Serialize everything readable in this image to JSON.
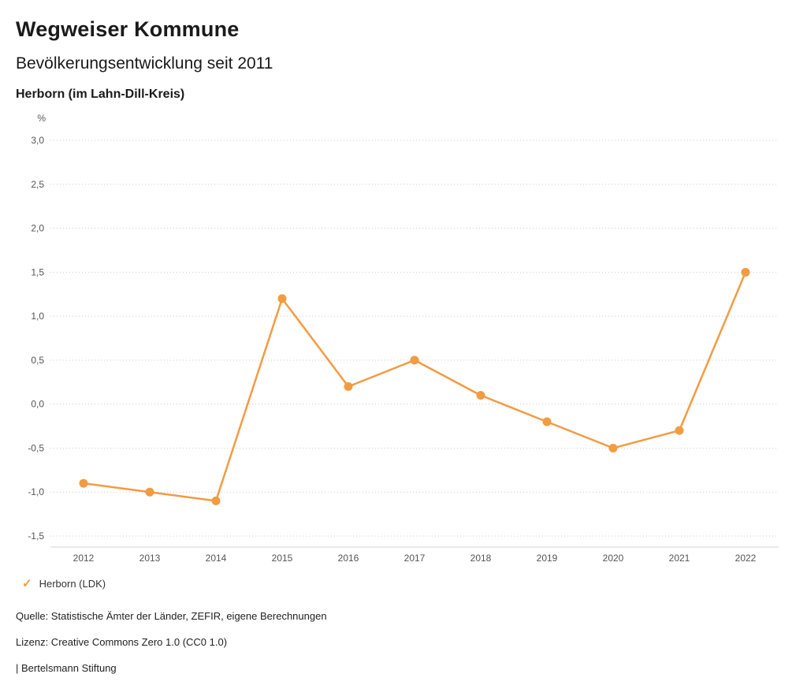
{
  "header": {
    "title": "Wegweiser Kommune",
    "subtitle": "Bevölkerungsentwicklung seit 2011",
    "region": "Herborn (im Lahn-Dill-Kreis)"
  },
  "chart_data": {
    "type": "line",
    "unit": "%",
    "categories": [
      "2012",
      "2013",
      "2014",
      "2015",
      "2016",
      "2017",
      "2018",
      "2019",
      "2020",
      "2021",
      "2022"
    ],
    "series": [
      {
        "name": "Herborn (LDK)",
        "color": "#f39b41",
        "values": [
          -0.9,
          -1.0,
          -1.1,
          1.2,
          0.2,
          0.5,
          0.1,
          -0.2,
          -0.5,
          -0.3,
          1.5
        ]
      }
    ],
    "ylim": [
      -1.5,
      3.0
    ],
    "ytick_step": 0.5,
    "ytick_labels": [
      "3,0",
      "2,5",
      "2,0",
      "1,5",
      "1,0",
      "0,5",
      "0,0",
      "-0,5",
      "-1,0",
      "-1,5"
    ],
    "grid": "horizontal-dotted",
    "legend_position": "bottom-left"
  },
  "legend": {
    "check_icon": "✓",
    "label": "Herborn (LDK)"
  },
  "footer": {
    "source": "Quelle: Statistische Ämter der Länder, ZEFIR, eigene Berechnungen",
    "license": "Lizenz: Creative Commons Zero 1.0 (CC0 1.0)",
    "attribution": "| Bertelsmann Stiftung"
  }
}
